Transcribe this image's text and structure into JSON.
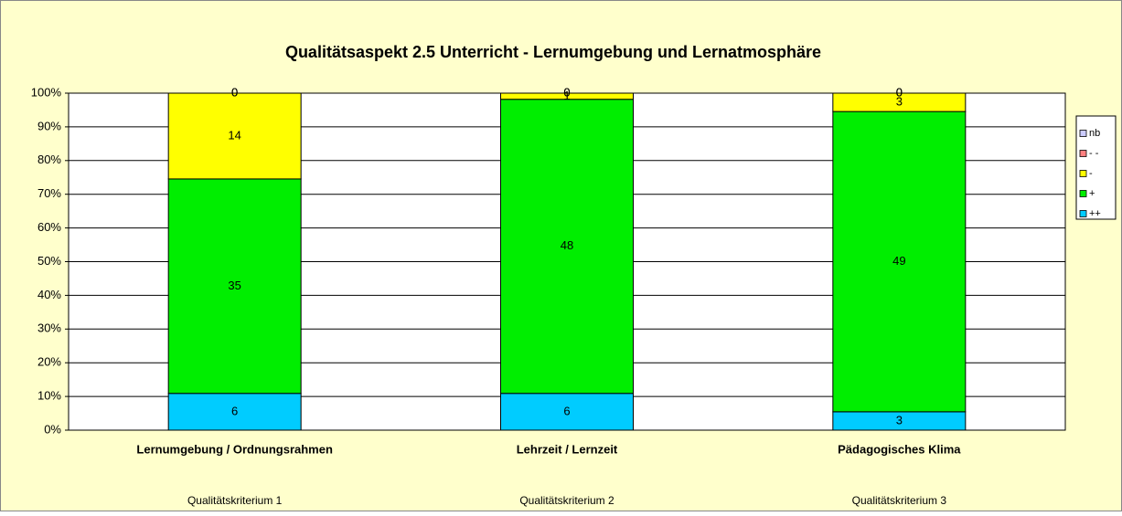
{
  "chart_data": {
    "type": "bar",
    "stacked": "percent",
    "title": "Qualitätsaspekt  2.5     Unterricht - Lernumgebung und Lernatmosphäre",
    "categories": [
      "Lernumgebung / Ordnungsrahmen",
      "Lehrzeit / Lernzeit",
      "Pädagogisches Klima"
    ],
    "subcategories": [
      "Qualitätskriterium 1",
      "Qualitätskriterium 2",
      "Qualitätskriterium 3"
    ],
    "series": [
      {
        "name": "++",
        "color": "#00ccff",
        "values": [
          6,
          6,
          3
        ]
      },
      {
        "name": "+",
        "color": "#00ee00",
        "values": [
          35,
          48,
          49
        ]
      },
      {
        "name": "-",
        "color": "#ffff00",
        "values": [
          14,
          1,
          3
        ]
      },
      {
        "name": "- -",
        "color": "#ff8080",
        "values": [
          0,
          0,
          0
        ]
      },
      {
        "name": "nb",
        "color": "#ccccff",
        "values": [
          0,
          0,
          0
        ]
      }
    ],
    "ylim": [
      0,
      100
    ],
    "yticks": [
      {
        "value": 0,
        "label": "0%"
      },
      {
        "value": 10,
        "label": "10%"
      },
      {
        "value": 20,
        "label": "20%"
      },
      {
        "value": 30,
        "label": "30%"
      },
      {
        "value": 40,
        "label": "40%"
      },
      {
        "value": 50,
        "label": "50%"
      },
      {
        "value": 60,
        "label": "60%"
      },
      {
        "value": 70,
        "label": "70%"
      },
      {
        "value": 80,
        "label": "80%"
      },
      {
        "value": 90,
        "label": "90%"
      },
      {
        "value": 100,
        "label": "100%"
      }
    ],
    "grid": true,
    "legend": "right"
  }
}
